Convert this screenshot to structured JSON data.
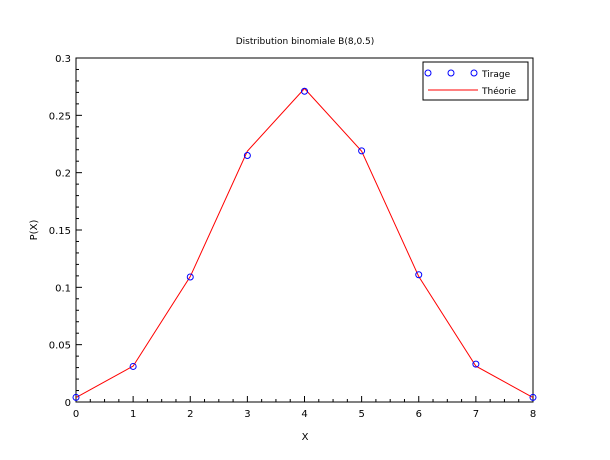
{
  "chart_data": {
    "type": "line",
    "title": "Distribution binomiale B(8,0.5)",
    "xlabel": "X",
    "ylabel": "P(X)",
    "xlim": [
      0,
      8
    ],
    "ylim": [
      0,
      0.3
    ],
    "x_ticks": [
      0,
      1,
      2,
      3,
      4,
      5,
      6,
      7,
      8
    ],
    "y_ticks": [
      0,
      0.05,
      0.1,
      0.15,
      0.2,
      0.25,
      0.3
    ],
    "x_tick_labels": [
      "0",
      "1",
      "2",
      "3",
      "4",
      "5",
      "6",
      "7",
      "8"
    ],
    "y_tick_labels": [
      "0",
      "0.05",
      "0.1",
      "0.15",
      "0.2",
      "0.25",
      "0.3"
    ],
    "grid": false,
    "legend_position": "top-right",
    "series": [
      {
        "name": "Tirage",
        "style": "markers",
        "marker": "circle",
        "color": "#0000ff",
        "x": [
          0,
          1,
          2,
          3,
          4,
          5,
          6,
          7,
          8
        ],
        "values": [
          0.004,
          0.031,
          0.109,
          0.215,
          0.271,
          0.219,
          0.111,
          0.033,
          0.004
        ]
      },
      {
        "name": "Théorie",
        "style": "line",
        "color": "#ff0000",
        "x": [
          0,
          1,
          2,
          3,
          4,
          5,
          6,
          7,
          8
        ],
        "values": [
          0.0039,
          0.0313,
          0.1094,
          0.2188,
          0.2734,
          0.2188,
          0.1094,
          0.0313,
          0.0039
        ]
      }
    ]
  }
}
